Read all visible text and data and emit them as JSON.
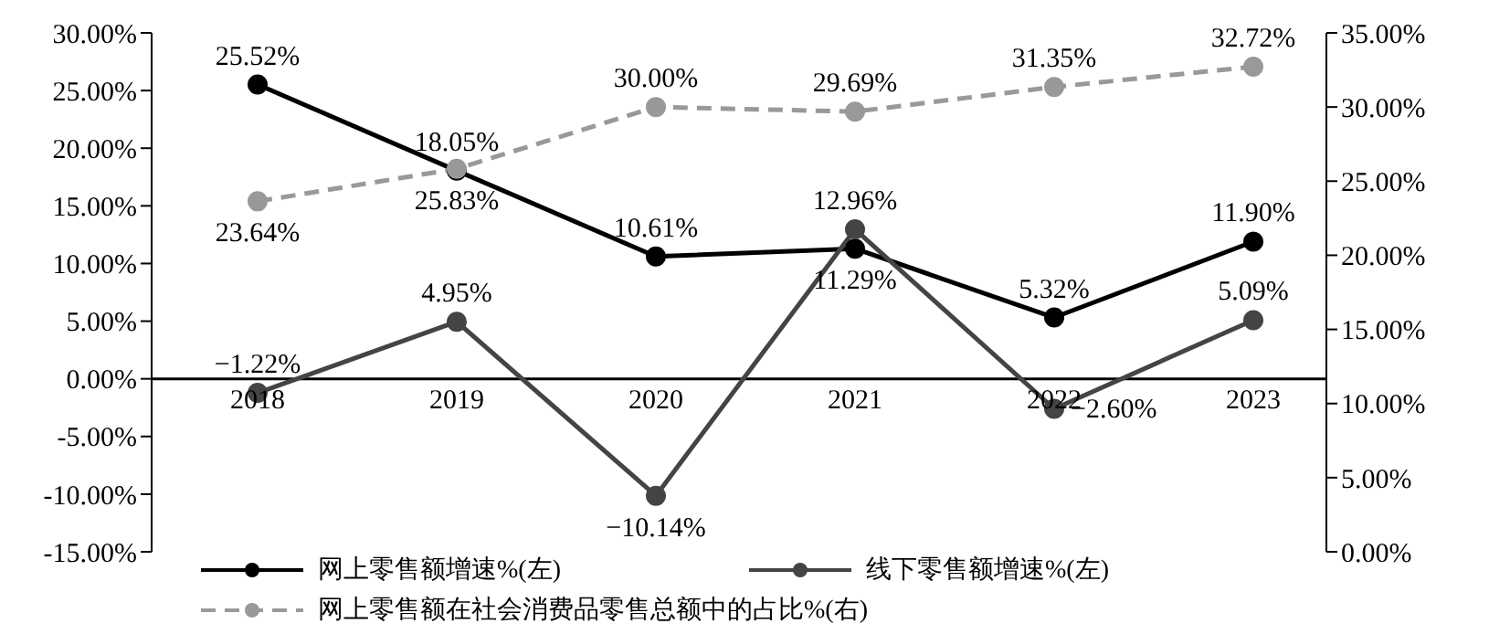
{
  "chart_data": {
    "type": "line",
    "categories": [
      "2018",
      "2019",
      "2020",
      "2021",
      "2022",
      "2023"
    ],
    "series": [
      {
        "name": "网上零售额增速%(左)",
        "color": "#000000",
        "values": [
          25.52,
          18.05,
          10.61,
          11.29,
          5.32,
          11.9
        ],
        "value_labels": [
          "25.52%",
          "18.05%",
          "10.61%",
          "11.29%",
          "5.32%",
          "11.90%"
        ]
      },
      {
        "name": "线下零售额增速%(左)",
        "color": "#444444",
        "values": [
          -1.22,
          4.95,
          -10.14,
          12.96,
          -2.6,
          5.09
        ],
        "value_labels": [
          "−1.22%",
          "4.95%",
          "−10.14%",
          "12.96%",
          "−2.60%",
          "5.09%"
        ]
      },
      {
        "name": "网上零售额在社会消费品零售总额中的占比%(右)",
        "color": "#999999",
        "axis": "y2",
        "line_style": "dashed",
        "values": [
          23.64,
          25.83,
          30.0,
          29.69,
          31.35,
          32.72
        ],
        "value_labels": [
          "23.64%",
          "25.83%",
          "30.00%",
          "29.69%",
          "31.35%",
          "32.72%"
        ]
      }
    ],
    "ylim": [
      -15,
      30
    ],
    "yticks": [
      {
        "value": -15,
        "label": "-15.00%"
      },
      {
        "value": -10,
        "label": "-10.00%"
      },
      {
        "value": -5,
        "label": "-5.00%"
      },
      {
        "value": 0,
        "label": "0.00%"
      },
      {
        "value": 5,
        "label": "5.00%"
      },
      {
        "value": 10,
        "label": "10.00%"
      },
      {
        "value": 15,
        "label": "15.00%"
      },
      {
        "value": 20,
        "label": "20.00%"
      },
      {
        "value": 25,
        "label": "25.00%"
      },
      {
        "value": 30,
        "label": "30.00%"
      }
    ],
    "y2lim": [
      0,
      35
    ],
    "y2ticks": [
      {
        "value": 0,
        "label": "0.00%"
      },
      {
        "value": 5,
        "label": "5.00%"
      },
      {
        "value": 10,
        "label": "10.00%"
      },
      {
        "value": 15,
        "label": "15.00%"
      },
      {
        "value": 20,
        "label": "20.00%"
      },
      {
        "value": 25,
        "label": "25.00%"
      },
      {
        "value": 30,
        "label": "30.00%"
      },
      {
        "value": 35,
        "label": "35.00%"
      }
    ],
    "marker": "circle",
    "line_style": "solid",
    "grid": false,
    "legend": "bottom"
  }
}
